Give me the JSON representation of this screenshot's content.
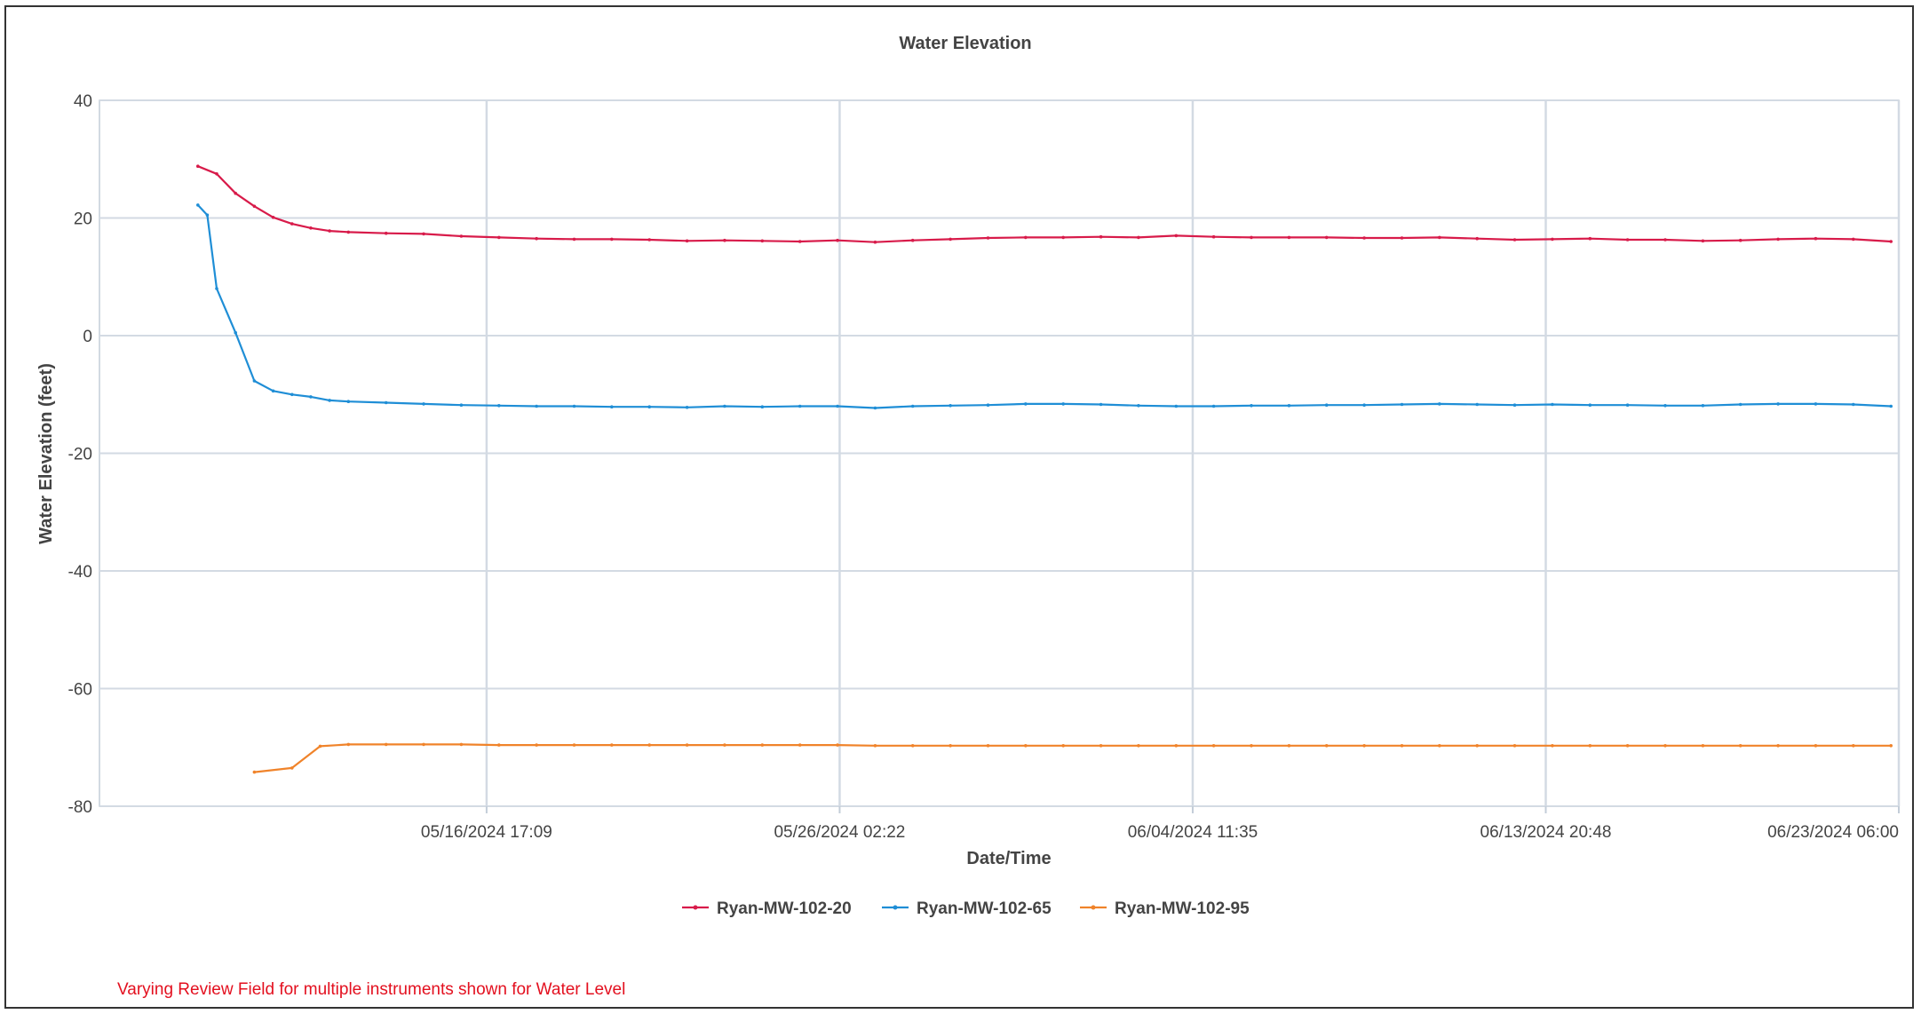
{
  "chart_data": {
    "type": "line",
    "title": "Water Elevation",
    "xlabel": "Date/Time",
    "ylabel": "Water Elevation (feet)",
    "ylim": [
      -80,
      40
    ],
    "yticks": [
      40,
      20,
      0,
      -20,
      -40,
      -60,
      -80
    ],
    "xlim": [
      "05/06/2024 10:12",
      "06/23/2024 06:00"
    ],
    "xticks": [
      "05/16/2024 17:09",
      "05/26/2024 02:22",
      "06/04/2024 11:35",
      "06/13/2024 20:48",
      "06/23/2024 06:00"
    ],
    "grid": true,
    "legend_position": "bottom",
    "series": [
      {
        "name": "Ryan-MW-102-20",
        "color": "#d81b4a",
        "x": [
          "05/09/2024 01:00",
          "05/09/2024 13:00",
          "05/10/2024 01:00",
          "05/10/2024 13:00",
          "05/11/2024 01:00",
          "05/11/2024 13:00",
          "05/12/2024 01:00",
          "05/12/2024 13:00",
          "05/13/2024 01:00",
          "05/14/2024 01:00",
          "05/15/2024 01:00",
          "05/16/2024 01:00",
          "05/17/2024 01:00",
          "05/18/2024 01:00",
          "05/19/2024 01:00",
          "05/20/2024 01:00",
          "05/21/2024 01:00",
          "05/22/2024 01:00",
          "05/23/2024 01:00",
          "05/24/2024 01:00",
          "05/25/2024 01:00",
          "05/26/2024 01:00",
          "05/27/2024 01:00",
          "05/28/2024 01:00",
          "05/29/2024 01:00",
          "05/30/2024 01:00",
          "05/31/2024 01:00",
          "06/01/2024 01:00",
          "06/02/2024 01:00",
          "06/03/2024 01:00",
          "06/04/2024 01:00",
          "06/05/2024 01:00",
          "06/06/2024 01:00",
          "06/07/2024 01:00",
          "06/08/2024 01:00",
          "06/09/2024 01:00",
          "06/10/2024 01:00",
          "06/11/2024 01:00",
          "06/12/2024 01:00",
          "06/13/2024 01:00",
          "06/14/2024 01:00",
          "06/15/2024 01:00",
          "06/16/2024 01:00",
          "06/17/2024 01:00",
          "06/18/2024 01:00",
          "06/19/2024 01:00",
          "06/20/2024 01:00",
          "06/21/2024 01:00",
          "06/22/2024 01:00",
          "06/23/2024 01:00"
        ],
        "values": [
          28.8,
          27.5,
          24.2,
          22.0,
          20.1,
          19.0,
          18.3,
          17.8,
          17.6,
          17.4,
          17.3,
          16.9,
          16.7,
          16.5,
          16.4,
          16.4,
          16.3,
          16.1,
          16.2,
          16.1,
          16.0,
          16.2,
          15.9,
          16.2,
          16.4,
          16.6,
          16.7,
          16.7,
          16.8,
          16.7,
          17.0,
          16.8,
          16.7,
          16.7,
          16.7,
          16.6,
          16.6,
          16.7,
          16.5,
          16.3,
          16.4,
          16.5,
          16.3,
          16.3,
          16.1,
          16.2,
          16.4,
          16.5,
          16.4,
          16.0
        ]
      },
      {
        "name": "Ryan-MW-102-65",
        "color": "#1f8ed6",
        "x": [
          "05/09/2024 01:00",
          "05/09/2024 07:00",
          "05/09/2024 13:00",
          "05/10/2024 01:00",
          "05/10/2024 13:00",
          "05/11/2024 01:00",
          "05/11/2024 13:00",
          "05/12/2024 01:00",
          "05/12/2024 13:00",
          "05/13/2024 01:00",
          "05/14/2024 01:00",
          "05/15/2024 01:00",
          "05/16/2024 01:00",
          "05/17/2024 01:00",
          "05/18/2024 01:00",
          "05/19/2024 01:00",
          "05/20/2024 01:00",
          "05/21/2024 01:00",
          "05/22/2024 01:00",
          "05/23/2024 01:00",
          "05/24/2024 01:00",
          "05/25/2024 01:00",
          "05/26/2024 01:00",
          "05/27/2024 01:00",
          "05/28/2024 01:00",
          "05/29/2024 01:00",
          "05/30/2024 01:00",
          "05/31/2024 01:00",
          "06/01/2024 01:00",
          "06/02/2024 01:00",
          "06/03/2024 01:00",
          "06/04/2024 01:00",
          "06/05/2024 01:00",
          "06/06/2024 01:00",
          "06/07/2024 01:00",
          "06/08/2024 01:00",
          "06/09/2024 01:00",
          "06/10/2024 01:00",
          "06/11/2024 01:00",
          "06/12/2024 01:00",
          "06/13/2024 01:00",
          "06/14/2024 01:00",
          "06/15/2024 01:00",
          "06/16/2024 01:00",
          "06/17/2024 01:00",
          "06/18/2024 01:00",
          "06/19/2024 01:00",
          "06/20/2024 01:00",
          "06/21/2024 01:00",
          "06/22/2024 01:00",
          "06/23/2024 01:00"
        ],
        "values": [
          22.2,
          20.5,
          8.0,
          0.5,
          -7.7,
          -9.4,
          -10.0,
          -10.4,
          -11.0,
          -11.2,
          -11.4,
          -11.6,
          -11.8,
          -11.9,
          -12.0,
          -12.0,
          -12.1,
          -12.1,
          -12.2,
          -12.0,
          -12.1,
          -12.0,
          -12.0,
          -12.3,
          -12.0,
          -11.9,
          -11.8,
          -11.6,
          -11.6,
          -11.7,
          -11.9,
          -12.0,
          -12.0,
          -11.9,
          -11.9,
          -11.8,
          -11.8,
          -11.7,
          -11.6,
          -11.7,
          -11.8,
          -11.7,
          -11.8,
          -11.8,
          -11.9,
          -11.9,
          -11.7,
          -11.6,
          -11.6,
          -11.7,
          -12.0
        ]
      },
      {
        "name": "Ryan-MW-102-95",
        "color": "#f0832a",
        "x": [
          "05/10/2024 13:00",
          "05/11/2024 13:00",
          "05/12/2024 07:00",
          "05/13/2024 01:00",
          "05/14/2024 01:00",
          "05/15/2024 01:00",
          "05/16/2024 01:00",
          "05/17/2024 01:00",
          "05/18/2024 01:00",
          "05/19/2024 01:00",
          "05/20/2024 01:00",
          "05/21/2024 01:00",
          "05/22/2024 01:00",
          "05/23/2024 01:00",
          "05/24/2024 01:00",
          "05/25/2024 01:00",
          "05/26/2024 01:00",
          "05/27/2024 01:00",
          "05/28/2024 01:00",
          "05/29/2024 01:00",
          "05/30/2024 01:00",
          "05/31/2024 01:00",
          "06/01/2024 01:00",
          "06/02/2024 01:00",
          "06/03/2024 01:00",
          "06/04/2024 01:00",
          "06/05/2024 01:00",
          "06/06/2024 01:00",
          "06/07/2024 01:00",
          "06/08/2024 01:00",
          "06/09/2024 01:00",
          "06/10/2024 01:00",
          "06/11/2024 01:00",
          "06/12/2024 01:00",
          "06/13/2024 01:00",
          "06/14/2024 01:00",
          "06/15/2024 01:00",
          "06/16/2024 01:00",
          "06/17/2024 01:00",
          "06/18/2024 01:00",
          "06/19/2024 01:00",
          "06/20/2024 01:00",
          "06/21/2024 01:00",
          "06/22/2024 01:00",
          "06/23/2024 01:00"
        ],
        "values": [
          -74.2,
          -73.5,
          -69.8,
          -69.5,
          -69.5,
          -69.5,
          -69.5,
          -69.6,
          -69.6,
          -69.6,
          -69.6,
          -69.6,
          -69.6,
          -69.6,
          -69.6,
          -69.6,
          -69.6,
          -69.7,
          -69.7,
          -69.7,
          -69.7,
          -69.7,
          -69.7,
          -69.7,
          -69.7,
          -69.7,
          -69.7,
          -69.7,
          -69.7,
          -69.7,
          -69.7,
          -69.7,
          -69.7,
          -69.7,
          -69.7,
          -69.7,
          -69.7,
          -69.7,
          -69.7,
          -69.7,
          -69.7,
          -69.7,
          -69.7,
          -69.7,
          -69.7
        ]
      }
    ]
  },
  "note": "Varying Review Field for multiple instruments shown for Water Level",
  "colors": {
    "grid": "#d3dae3",
    "axis": "#c3cdd8",
    "text": "#444444",
    "note": "#e3101f"
  }
}
